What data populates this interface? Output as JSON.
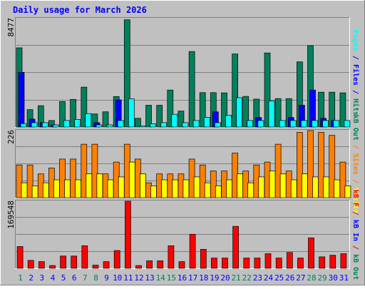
{
  "chart_data": {
    "type": "bar",
    "title": "Daily usage for March 2026",
    "days": [
      "1",
      "2",
      "3",
      "4",
      "5",
      "6",
      "7",
      "8",
      "9",
      "10",
      "11",
      "12",
      "13",
      "14",
      "15",
      "16",
      "17",
      "18",
      "19",
      "20",
      "21",
      "22",
      "23",
      "24",
      "25",
      "26",
      "27",
      "28",
      "29",
      "30",
      "31"
    ],
    "weekend_days": [
      "1",
      "7",
      "8",
      "14",
      "15",
      "21",
      "22",
      "28",
      "29"
    ],
    "panels": [
      {
        "name": "hits-files-pages",
        "max_label": "8477",
        "ymax": 8477,
        "grid": [
          0.25,
          0.5,
          0.75
        ],
        "series": [
          {
            "name": "Hits",
            "color": "#00805c",
            "values": [
              6190,
              1360,
              1670,
              510,
              1990,
              2160,
              3120,
              1020,
              1190,
              2380,
              8380,
              680,
              1700,
              1700,
              2890,
              1250,
              5900,
              2690,
              2690,
              2670,
              5710,
              2390,
              2180,
              5790,
              2220,
              2220,
              5090,
              6360,
              2720,
              2720,
              2670
            ]
          },
          {
            "name": "Files",
            "color": "#0000ff",
            "values": [
              4280,
              620,
              340,
              170,
              0,
              0,
              0,
              340,
              0,
              2120,
              0,
              0,
              0,
              0,
              0,
              0,
              0,
              0,
              1190,
              0,
              0,
              0,
              740,
              0,
              0,
              740,
              1700,
              2890,
              680,
              510,
              0
            ]
          },
          {
            "name": "Pages",
            "color": "#00ffff",
            "values": [
              270,
              340,
              340,
              170,
              510,
              590,
              1050,
              170,
              170,
              510,
              2210,
              85,
              250,
              340,
              1000,
              340,
              510,
              760,
              340,
              920,
              2290,
              510,
              510,
              2040,
              510,
              510,
              510,
              510,
              510,
              510,
              510
            ]
          }
        ],
        "axis_label": [
          {
            "text": "Pages",
            "color": "#00ffff"
          },
          {
            "text": " / ",
            "color": "#0000ff"
          },
          {
            "text": "Files",
            "color": "#0000ff"
          },
          {
            "text": " / ",
            "color": "#0000ff"
          },
          {
            "text": "Hits",
            "color": "#00805c"
          }
        ]
      },
      {
        "name": "visits-sites",
        "max_label": "226",
        "ymax": 226,
        "grid": [
          0.25,
          0.5,
          0.75
        ],
        "series": [
          {
            "name": "Sites",
            "color": "#ff8000",
            "values": [
              110,
              110,
              80,
              100,
              130,
              130,
              180,
              180,
              80,
              120,
              180,
              130,
              50,
              80,
              80,
              80,
              130,
              110,
              90,
              90,
              150,
              90,
              110,
              120,
              180,
              90,
              220,
              226,
              220,
              210,
              120
            ]
          },
          {
            "name": "Visits",
            "color": "#ffff00",
            "values": [
              50,
              40,
              50,
              60,
              60,
              60,
              80,
              80,
              60,
              70,
              120,
              80,
              40,
              60,
              60,
              60,
              70,
              50,
              40,
              60,
              80,
              50,
              70,
              90,
              80,
              60,
              80,
              70,
              70,
              60,
              40
            ]
          }
        ],
        "axis_label": [
          {
            "text": "kB Out",
            "color": "#00805c"
          },
          {
            "text": " / ",
            "color": "#ff8000"
          },
          {
            "text": "Sites",
            "color": "#ff8000"
          },
          {
            "text": " / ",
            "color": "#ff8000"
          },
          {
            "text": "Visits",
            "color": "#ffff00"
          }
        ]
      },
      {
        "name": "kbytes",
        "max_label": "169548",
        "ymax": 169548,
        "grid": [
          0.25,
          0.5,
          0.75
        ],
        "series": [
          {
            "name": "kB F",
            "color": "#ff0000",
            "values": [
              55000,
              20000,
              17000,
              7000,
              31000,
              31000,
              57000,
              8000,
              17000,
              45000,
              169548,
              7000,
              19000,
              19000,
              57000,
              17000,
              86000,
              48000,
              26000,
              26000,
              106000,
              26000,
              26000,
              37000,
              26000,
              40000,
              26000,
              77000,
              29000,
              33000,
              37000
            ]
          }
        ],
        "axis_label": [
          {
            "text": "kB F",
            "color": "#ff0000"
          },
          {
            "text": " / ",
            "color": "#ff0000"
          },
          {
            "text": "kB In",
            "color": "#0000ff"
          },
          {
            "text": " / ",
            "color": "#ff0000"
          },
          {
            "text": "kB Out",
            "color": "#00805c"
          }
        ]
      }
    ],
    "colors": {
      "background": "#c0c0c0",
      "title": "#0000ff",
      "day_label": "#0000ff",
      "weekend_label": "#00805c"
    }
  }
}
